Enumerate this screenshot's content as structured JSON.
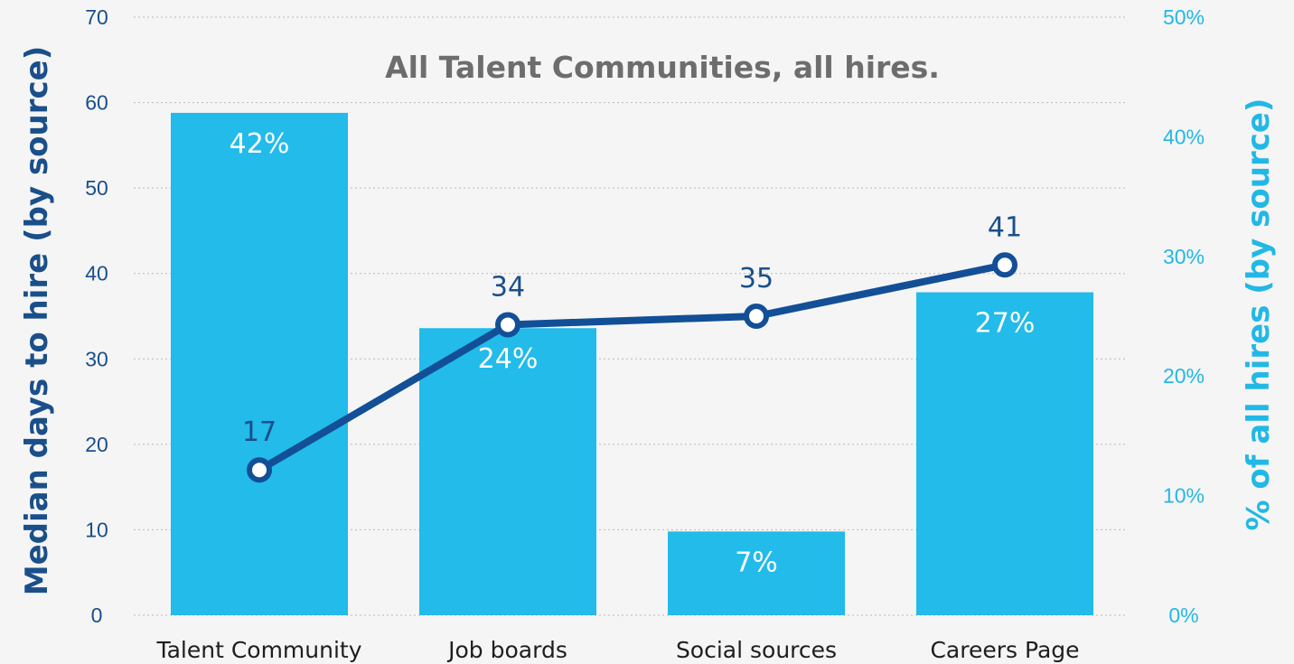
{
  "colors": {
    "bar": "#22bbea",
    "line": "#124f96",
    "left_axis": "#1a4f8a",
    "right_axis": "#22b8e6",
    "title": "#6d6d6d",
    "background": "#f5f5f5"
  },
  "chart_data": {
    "type": "bar",
    "title": "All Talent Communities, all hires.",
    "ylabel_left": "Median days to hire (by source)",
    "ylabel_right": "% of all hires (by source)",
    "categories": [
      "Talent Community",
      "Job boards",
      "Social sources",
      "Careers Page"
    ],
    "ylim_left": [
      0,
      70
    ],
    "ylim_right": [
      0,
      50
    ],
    "left_ticks": [
      "0",
      "10",
      "20",
      "30",
      "40",
      "50",
      "60",
      "70"
    ],
    "right_ticks": [
      "0%",
      "10%",
      "20%",
      "30%",
      "40%",
      "50%"
    ],
    "grid": true,
    "series": [
      {
        "type": "bar",
        "axis": "right",
        "values": [
          42,
          24,
          7,
          27
        ],
        "labels": [
          "42%",
          "24%",
          "7%",
          "27%"
        ]
      },
      {
        "type": "line",
        "axis": "left",
        "values": [
          17,
          34,
          35,
          41
        ],
        "labels": [
          "17",
          "34",
          "35",
          "41"
        ]
      }
    ]
  }
}
